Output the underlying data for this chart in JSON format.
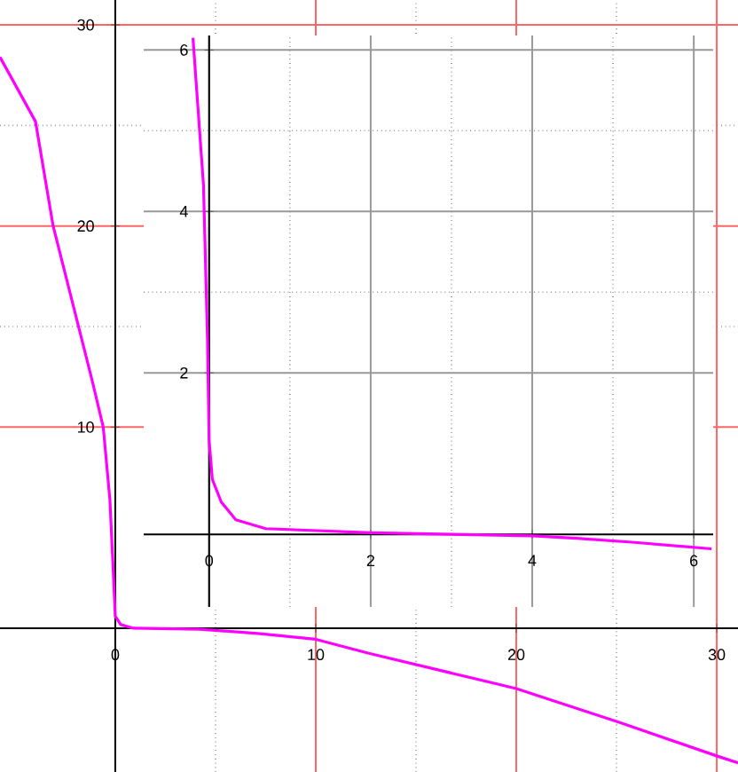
{
  "chart_data": [
    {
      "type": "line",
      "xlim": [
        -5.75,
        31.06
      ],
      "ylim": [
        -7.15,
        31.24
      ],
      "xticks": [
        0,
        10,
        20,
        30
      ],
      "yticks": [
        10,
        20,
        30
      ],
      "grid": true,
      "series": [
        {
          "color": "#ff00ff",
          "x": [
            -5.75,
            -3.98,
            -3.1,
            -1.15,
            -0.6,
            -0.27,
            -0.09,
            0,
            0.27,
            0.9,
            4.2,
            7.1,
            10,
            12.65,
            20,
            25.2,
            30,
            31.06
          ],
          "values": [
            28.4,
            25.2,
            20,
            12.3,
            10,
            6.4,
            2.6,
            0.6,
            0.18,
            0,
            -0.05,
            -0.26,
            -0.55,
            -1.25,
            -3.0,
            -4.7,
            -6.35,
            -6.7
          ]
        }
      ]
    },
    {
      "type": "line",
      "xlim": [
        -0.81,
        6.24
      ],
      "ylim": [
        -0.9,
        6.18
      ],
      "xticks": [
        0,
        2,
        4,
        6
      ],
      "yticks": [
        2,
        4,
        6
      ],
      "grid": true,
      "series": [
        {
          "color": "#ff00ff",
          "x": [
            -0.2,
            -0.07,
            -0.02,
            0,
            0.04,
            0.15,
            0.33,
            0.7,
            2,
            4,
            4.55,
            5.27,
            6.22
          ],
          "values": [
            6.15,
            4.33,
            2.4,
            1.16,
            0.68,
            0.4,
            0.18,
            0.07,
            0.02,
            -0.02,
            -0.05,
            -0.1,
            -0.18
          ]
        }
      ]
    }
  ]
}
